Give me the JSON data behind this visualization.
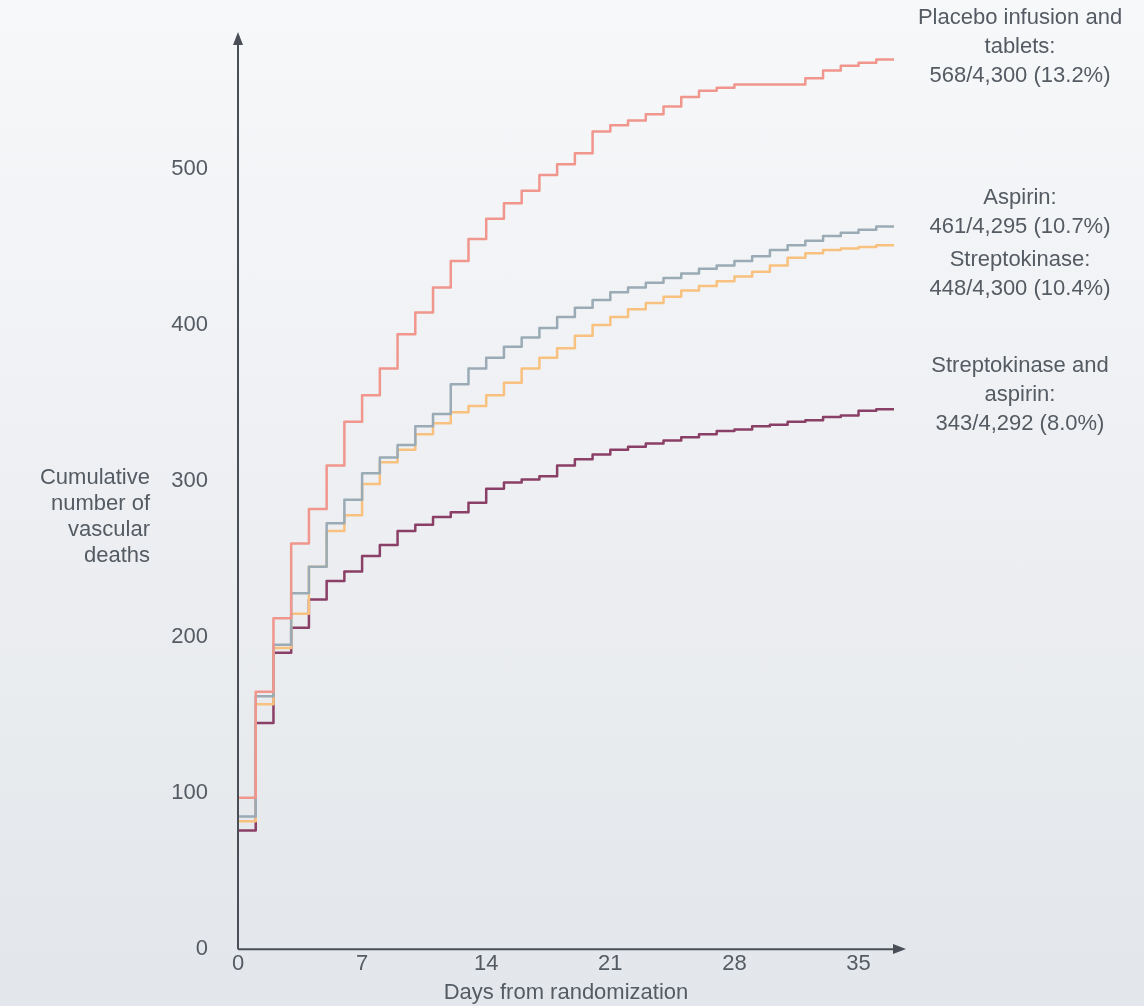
{
  "chart_data": {
    "type": "step",
    "xlabel": "Days from randomization",
    "ylabel": "Cumulative number of vascular deaths",
    "xlim": [
      0,
      37
    ],
    "ylim": [
      0,
      580
    ],
    "xticks": [
      0,
      7,
      14,
      21,
      28,
      35
    ],
    "yticks": [
      0,
      100,
      200,
      300,
      400,
      500
    ],
    "grid": false,
    "legend": false,
    "x": [
      0,
      1,
      2,
      3,
      4,
      5,
      6,
      7,
      8,
      9,
      10,
      11,
      12,
      13,
      14,
      15,
      16,
      17,
      18,
      19,
      20,
      21,
      22,
      23,
      24,
      25,
      26,
      27,
      28,
      29,
      30,
      31,
      32,
      33,
      34,
      35,
      36,
      37
    ],
    "series": [
      {
        "name": "Placebo infusion and tablets: 568/4,300 (13.2%)",
        "color": "#f0968c",
        "values": [
          97,
          165,
          212,
          260,
          282,
          310,
          338,
          355,
          372,
          394,
          408,
          424,
          441,
          455,
          468,
          478,
          486,
          496,
          503,
          510,
          524,
          528,
          531,
          535,
          540,
          546,
          550,
          552,
          554,
          554,
          554,
          554,
          558,
          563,
          566,
          568,
          570,
          570
        ]
      },
      {
        "name": "Aspirin: 461/4,295 (10.7%)",
        "color": "#9aabb5",
        "values": [
          85,
          162,
          195,
          228,
          245,
          273,
          288,
          305,
          315,
          323,
          335,
          343,
          362,
          372,
          379,
          386,
          392,
          398,
          405,
          411,
          416,
          421,
          424,
          427,
          430,
          433,
          436,
          438,
          441,
          444,
          448,
          451,
          454,
          457,
          459,
          461,
          463,
          463
        ]
      },
      {
        "name": "Streptokinase: 448/4,300 (10.4%)",
        "color": "#f9c17f",
        "values": [
          82,
          157,
          193,
          215,
          245,
          268,
          278,
          298,
          312,
          320,
          330,
          337,
          344,
          348,
          355,
          363,
          372,
          379,
          385,
          393,
          400,
          405,
          410,
          414,
          418,
          422,
          425,
          428,
          431,
          434,
          438,
          443,
          446,
          448,
          449,
          450,
          451,
          451
        ]
      },
      {
        "name": "Streptokinase and aspirin: 343/4,292 (8.0%)",
        "color": "#8a3f66",
        "values": [
          76,
          145,
          190,
          206,
          224,
          236,
          242,
          252,
          259,
          268,
          272,
          277,
          280,
          286,
          295,
          299,
          301,
          303,
          310,
          314,
          317,
          320,
          322,
          324,
          326,
          328,
          330,
          332,
          333,
          335,
          336,
          338,
          339,
          341,
          342,
          345,
          346,
          346
        ]
      }
    ]
  }
}
